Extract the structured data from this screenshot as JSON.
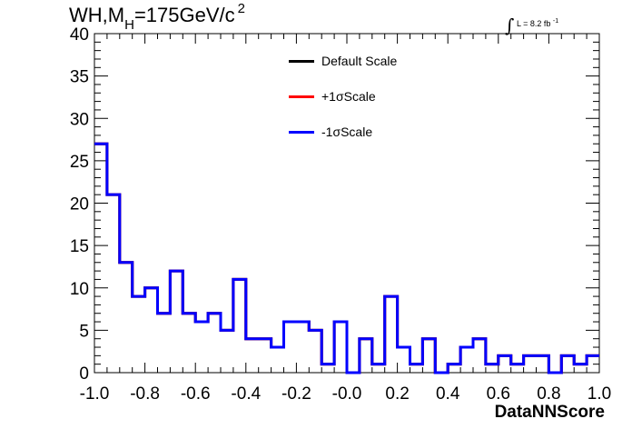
{
  "title": {
    "main_prefix": "WH,M",
    "main_sub": "H",
    "main_mid": "=175GeV/c",
    "main_sup": "2"
  },
  "lumi": {
    "integral": "∫",
    "text": "L = 8.2 fb",
    "sup": "-1"
  },
  "legend": [
    {
      "label": "Default Scale",
      "color": "#000000"
    },
    {
      "label": "+1σScale",
      "color": "#ff0000"
    },
    {
      "label": "-1σScale",
      "color": "#0000ff"
    }
  ],
  "chart_data": {
    "type": "histogram",
    "xlabel": "DataNNScore",
    "ylabel": "",
    "xlim": [
      -1.0,
      1.0
    ],
    "ylim": [
      0,
      40
    ],
    "x_ticks": [
      "-1.0",
      "-0.8",
      "-0.6",
      "-0.4",
      "-0.2",
      "-0.0",
      "0.2",
      "0.4",
      "0.6",
      "0.8",
      "1.0"
    ],
    "y_ticks": [
      "0",
      "5",
      "10",
      "15",
      "20",
      "25",
      "30",
      "35",
      "40"
    ],
    "bin_width": 0.05,
    "bin_edges_start": -1.0,
    "series": [
      {
        "name": "Default Scale",
        "color": "#000000",
        "values": [
          27,
          21,
          13,
          9,
          10,
          7,
          12,
          7,
          6,
          7,
          5,
          11,
          4,
          4,
          3,
          6,
          6,
          5,
          1,
          6,
          0,
          4,
          1,
          9,
          3,
          1,
          4,
          0,
          1,
          3,
          4,
          1,
          2,
          1,
          2,
          2,
          0,
          2,
          1,
          2
        ]
      },
      {
        "name": "+1σScale",
        "color": "#ff0000",
        "values": [
          27,
          21,
          13,
          9,
          10,
          7,
          12,
          7,
          6,
          7,
          5,
          11,
          4,
          4,
          3,
          6,
          6,
          5,
          1,
          6,
          0,
          4,
          1,
          9,
          3,
          1,
          4,
          0,
          1,
          3,
          4,
          1,
          2,
          1,
          2,
          2,
          0,
          2,
          1,
          2
        ]
      },
      {
        "name": "-1σScale",
        "color": "#0000ff",
        "values": [
          27,
          21,
          13,
          9,
          10,
          7,
          12,
          7,
          6,
          7,
          5,
          11,
          4,
          4,
          3,
          6,
          6,
          5,
          1,
          6,
          0,
          4,
          1,
          9,
          3,
          1,
          4,
          0,
          1,
          3,
          4,
          1,
          2,
          1,
          2,
          2,
          0,
          2,
          1,
          2
        ]
      }
    ]
  }
}
